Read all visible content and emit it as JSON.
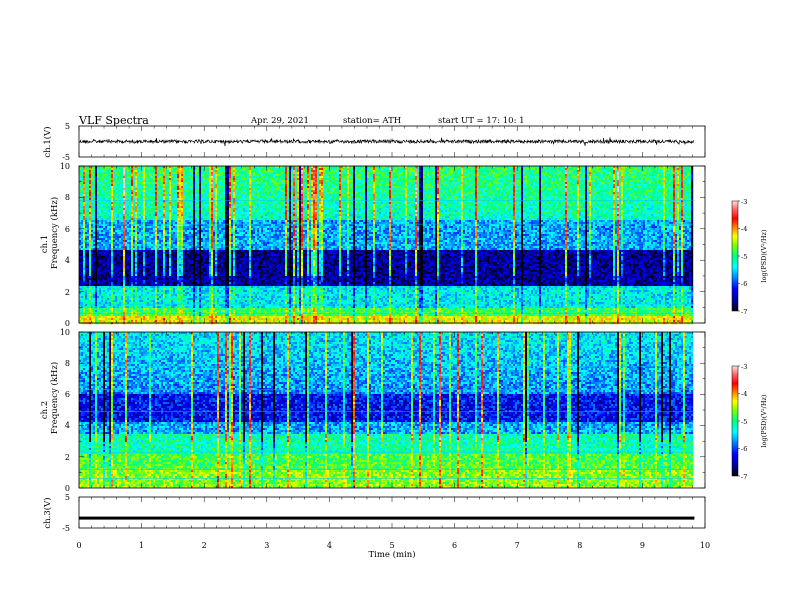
{
  "header": {
    "title": "VLF  Spectra",
    "date": "Apr. 29, 2021",
    "station": "station= ATH",
    "start": "start  UT  =    17: 10: 1"
  },
  "chart_data": [
    {
      "type": "line",
      "panel": "ch1-waveform",
      "ylabel": "ch.1(V)",
      "ylim": [
        -5,
        5
      ],
      "ytick_labels": [
        "5",
        "-5"
      ],
      "xlim": [
        0,
        10
      ],
      "y_level_approx": 0,
      "x_extent": [
        0,
        9.83
      ]
    },
    {
      "type": "heatmap",
      "panel": "ch1-spectrogram",
      "ylabel": "ch.1",
      "ylabel2": "Frequency  (kHz)",
      "ylim": [
        0,
        10
      ],
      "ytick_labels": [
        "0",
        "2",
        "4",
        "6",
        "8",
        "10"
      ],
      "xlim": [
        0,
        10
      ],
      "colorbar": {
        "label": "log(PSD)(V²/Hz)",
        "range": [
          -7,
          -3
        ],
        "tick_labels": [
          "-3",
          "-4",
          "-5",
          "-6",
          "-7"
        ]
      }
    },
    {
      "type": "heatmap",
      "panel": "ch2-spectrogram",
      "ylabel": "ch.2",
      "ylabel2": "Frequency  (kHz)",
      "ylim": [
        0,
        10
      ],
      "ytick_labels": [
        "0",
        "2",
        "4",
        "6",
        "8",
        "10"
      ],
      "xlim": [
        0,
        10
      ],
      "colorbar": {
        "label": "log(PSD)(V²/Hz)",
        "range": [
          -7,
          -3
        ],
        "tick_labels": [
          "-3",
          "-4",
          "-5",
          "-6",
          "-7"
        ]
      }
    },
    {
      "type": "line",
      "panel": "ch3-waveform",
      "ylabel": "ch.3(V)",
      "ylim": [
        -5,
        5
      ],
      "ytick_labels": [
        "5",
        "-5"
      ],
      "xlim": [
        0,
        10
      ],
      "y_level_approx": -1.8,
      "x_extent": [
        0,
        9.83
      ]
    }
  ],
  "xaxis": {
    "label": "Time  (min)",
    "range": [
      0,
      10
    ],
    "tick_labels": [
      "0",
      "1",
      "2",
      "3",
      "4",
      "5",
      "6",
      "7",
      "8",
      "9",
      "10"
    ]
  },
  "colors": {
    "colormap": [
      "#000000",
      "#00008b",
      "#0000ff",
      "#0080ff",
      "#00ffff",
      "#00ff80",
      "#80ff00",
      "#ffff00",
      "#ff8000",
      "#ff0000",
      "#ff6060",
      "#ffd0d0"
    ]
  }
}
